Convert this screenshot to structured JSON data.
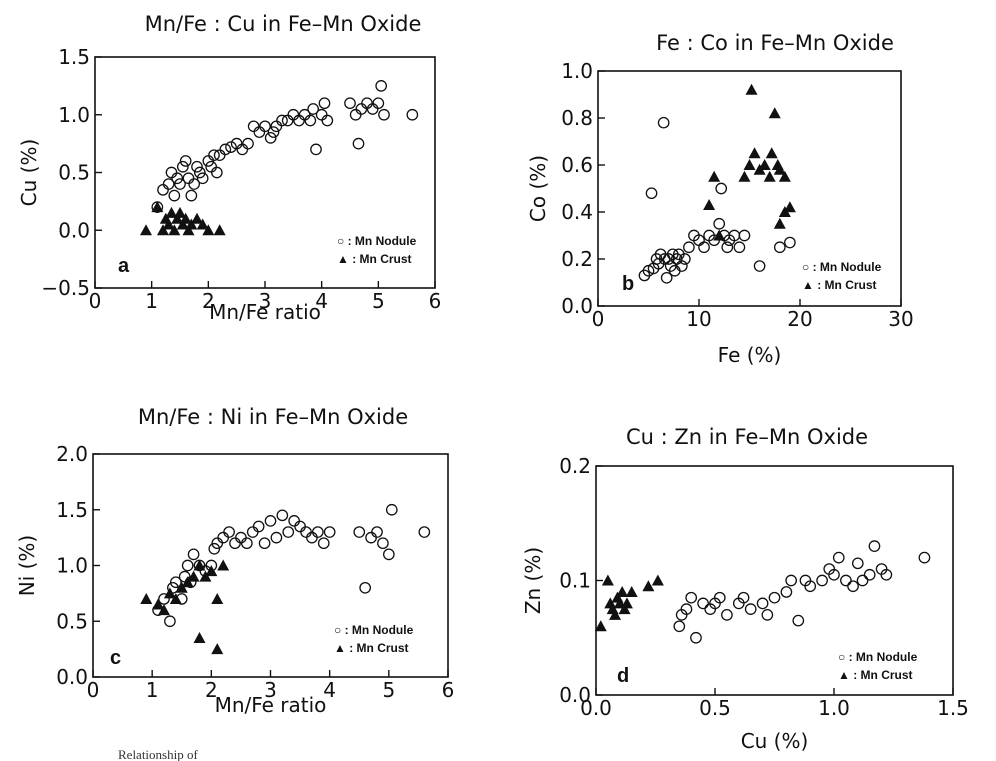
{
  "figure": {
    "caption_fragment": "Relationship of"
  },
  "chart_data": [
    {
      "id": "a",
      "type": "scatter",
      "title": "Mn/Fe : Cu in Fe–Mn Oxide",
      "xlabel": "Mn/Fe ratio",
      "ylabel": "Cu (%)",
      "panel_label": "a",
      "xlim": [
        0,
        6
      ],
      "ylim": [
        -0.5,
        1.5
      ],
      "xticks": [
        0,
        1,
        2,
        3,
        4,
        5,
        6
      ],
      "yticks": [
        -0.5,
        0.0,
        0.5,
        1.0,
        1.5
      ],
      "ytick_labels": [
        "−0.5",
        "0.0",
        "0.5",
        "1.0",
        "1.5"
      ],
      "xtick_labels": [
        "0",
        "1",
        "2",
        "3",
        "4",
        "5",
        "6"
      ],
      "legend": [
        "○ : Mn Nodule",
        "▲ : Mn Crust"
      ],
      "legend_position": "bottom-right",
      "series": [
        {
          "name": "Mn Nodule",
          "marker": "open-circle",
          "points": [
            [
              1.1,
              0.2
            ],
            [
              1.2,
              0.35
            ],
            [
              1.3,
              0.4
            ],
            [
              1.35,
              0.5
            ],
            [
              1.4,
              0.3
            ],
            [
              1.45,
              0.45
            ],
            [
              1.5,
              0.4
            ],
            [
              1.55,
              0.55
            ],
            [
              1.6,
              0.6
            ],
            [
              1.65,
              0.45
            ],
            [
              1.7,
              0.3
            ],
            [
              1.75,
              0.4
            ],
            [
              1.8,
              0.55
            ],
            [
              1.85,
              0.5
            ],
            [
              1.9,
              0.45
            ],
            [
              2.0,
              0.6
            ],
            [
              2.05,
              0.55
            ],
            [
              2.1,
              0.65
            ],
            [
              2.15,
              0.5
            ],
            [
              2.2,
              0.65
            ],
            [
              2.3,
              0.7
            ],
            [
              2.4,
              0.72
            ],
            [
              2.5,
              0.75
            ],
            [
              2.6,
              0.7
            ],
            [
              2.7,
              0.75
            ],
            [
              2.8,
              0.9
            ],
            [
              2.9,
              0.85
            ],
            [
              3.0,
              0.9
            ],
            [
              3.1,
              0.8
            ],
            [
              3.15,
              0.85
            ],
            [
              3.2,
              0.9
            ],
            [
              3.3,
              0.95
            ],
            [
              3.4,
              0.95
            ],
            [
              3.5,
              1.0
            ],
            [
              3.6,
              0.95
            ],
            [
              3.7,
              1.0
            ],
            [
              3.8,
              0.95
            ],
            [
              3.85,
              1.05
            ],
            [
              3.9,
              0.7
            ],
            [
              4.0,
              1.0
            ],
            [
              4.05,
              1.1
            ],
            [
              4.1,
              0.95
            ],
            [
              4.5,
              1.1
            ],
            [
              4.6,
              1.0
            ],
            [
              4.65,
              0.75
            ],
            [
              4.7,
              1.05
            ],
            [
              4.8,
              1.1
            ],
            [
              4.9,
              1.05
            ],
            [
              5.0,
              1.1
            ],
            [
              5.05,
              1.25
            ],
            [
              5.1,
              1.0
            ],
            [
              5.6,
              1.0
            ]
          ]
        },
        {
          "name": "Mn Crust",
          "marker": "filled-triangle",
          "points": [
            [
              0.9,
              0.0
            ],
            [
              1.1,
              0.2
            ],
            [
              1.2,
              0.0
            ],
            [
              1.25,
              0.1
            ],
            [
              1.3,
              0.05
            ],
            [
              1.35,
              0.15
            ],
            [
              1.4,
              0.0
            ],
            [
              1.45,
              0.1
            ],
            [
              1.5,
              0.15
            ],
            [
              1.55,
              0.05
            ],
            [
              1.6,
              0.1
            ],
            [
              1.65,
              0.0
            ],
            [
              1.7,
              0.05
            ],
            [
              1.8,
              0.1
            ],
            [
              1.9,
              0.05
            ],
            [
              2.0,
              0.0
            ],
            [
              2.2,
              0.0
            ]
          ]
        }
      ]
    },
    {
      "id": "b",
      "type": "scatter",
      "title": "Fe : Co in Fe–Mn Oxide",
      "xlabel": "Fe (%)",
      "ylabel": "Co (%)",
      "panel_label": "b",
      "xlim": [
        0,
        30
      ],
      "ylim": [
        0.0,
        1.0
      ],
      "xticks": [
        0,
        10,
        20,
        30
      ],
      "yticks": [
        0.0,
        0.2,
        0.4,
        0.6,
        0.8,
        1.0
      ],
      "ytick_labels": [
        "0.0",
        "0.2",
        "0.4",
        "0.6",
        "0.8",
        "1.0"
      ],
      "xtick_labels": [
        "0",
        "10",
        "20",
        "30"
      ],
      "legend": [
        "○ : Mn Nodule",
        "▲ : Mn Crust"
      ],
      "legend_position": "bottom-right",
      "series": [
        {
          "name": "Mn Nodule",
          "marker": "open-circle",
          "points": [
            [
              4.6,
              0.13
            ],
            [
              5.0,
              0.15
            ],
            [
              5.3,
              0.48
            ],
            [
              5.5,
              0.16
            ],
            [
              5.8,
              0.2
            ],
            [
              6.0,
              0.18
            ],
            [
              6.2,
              0.22
            ],
            [
              6.5,
              0.78
            ],
            [
              6.6,
              0.2
            ],
            [
              6.8,
              0.12
            ],
            [
              7.0,
              0.2
            ],
            [
              7.2,
              0.17
            ],
            [
              7.4,
              0.22
            ],
            [
              7.6,
              0.15
            ],
            [
              7.8,
              0.2
            ],
            [
              8.0,
              0.22
            ],
            [
              8.3,
              0.17
            ],
            [
              8.6,
              0.2
            ],
            [
              9.0,
              0.25
            ],
            [
              9.5,
              0.3
            ],
            [
              10.0,
              0.28
            ],
            [
              10.5,
              0.25
            ],
            [
              11.0,
              0.3
            ],
            [
              11.5,
              0.28
            ],
            [
              12.0,
              0.35
            ],
            [
              12.2,
              0.5
            ],
            [
              12.5,
              0.3
            ],
            [
              12.8,
              0.25
            ],
            [
              13.0,
              0.28
            ],
            [
              13.5,
              0.3
            ],
            [
              14.0,
              0.25
            ],
            [
              14.5,
              0.3
            ],
            [
              16.0,
              0.17
            ],
            [
              18.0,
              0.25
            ],
            [
              19.0,
              0.27
            ]
          ]
        },
        {
          "name": "Mn Crust",
          "marker": "filled-triangle",
          "points": [
            [
              11.0,
              0.43
            ],
            [
              11.5,
              0.55
            ],
            [
              12.0,
              0.3
            ],
            [
              14.5,
              0.55
            ],
            [
              15.0,
              0.6
            ],
            [
              15.2,
              0.92
            ],
            [
              15.5,
              0.65
            ],
            [
              16.0,
              0.58
            ],
            [
              16.5,
              0.6
            ],
            [
              17.0,
              0.55
            ],
            [
              17.2,
              0.65
            ],
            [
              17.5,
              0.82
            ],
            [
              17.8,
              0.6
            ],
            [
              18.0,
              0.58
            ],
            [
              18.5,
              0.55
            ],
            [
              18.0,
              0.35
            ],
            [
              18.5,
              0.4
            ],
            [
              19.0,
              0.42
            ]
          ]
        }
      ]
    },
    {
      "id": "c",
      "type": "scatter",
      "title": "Mn/Fe : Ni in Fe–Mn Oxide",
      "xlabel": "Mn/Fe ratio",
      "ylabel": "Ni (%)",
      "panel_label": "c",
      "xlim": [
        0,
        6
      ],
      "ylim": [
        0.0,
        2.0
      ],
      "xticks": [
        0,
        1,
        2,
        3,
        4,
        5,
        6
      ],
      "yticks": [
        0.0,
        0.5,
        1.0,
        1.5,
        2.0
      ],
      "ytick_labels": [
        "0.0",
        "0.5",
        "1.0",
        "1.5",
        "2.0"
      ],
      "xtick_labels": [
        "0",
        "1",
        "2",
        "3",
        "4",
        "5",
        "6"
      ],
      "legend": [
        "○ : Mn Nodule",
        "▲ : Mn Crust"
      ],
      "legend_position": "bottom-right",
      "series": [
        {
          "name": "Mn Nodule",
          "marker": "open-circle",
          "points": [
            [
              1.1,
              0.6
            ],
            [
              1.2,
              0.7
            ],
            [
              1.3,
              0.5
            ],
            [
              1.35,
              0.8
            ],
            [
              1.4,
              0.85
            ],
            [
              1.5,
              0.7
            ],
            [
              1.55,
              0.9
            ],
            [
              1.6,
              1.0
            ],
            [
              1.65,
              0.85
            ],
            [
              1.7,
              1.1
            ],
            [
              1.8,
              1.0
            ],
            [
              1.9,
              0.95
            ],
            [
              2.0,
              1.0
            ],
            [
              2.05,
              1.15
            ],
            [
              2.1,
              1.2
            ],
            [
              2.2,
              1.25
            ],
            [
              2.3,
              1.3
            ],
            [
              2.4,
              1.2
            ],
            [
              2.5,
              1.25
            ],
            [
              2.6,
              1.2
            ],
            [
              2.7,
              1.3
            ],
            [
              2.8,
              1.35
            ],
            [
              2.9,
              1.2
            ],
            [
              3.0,
              1.4
            ],
            [
              3.1,
              1.25
            ],
            [
              3.2,
              1.45
            ],
            [
              3.3,
              1.3
            ],
            [
              3.4,
              1.4
            ],
            [
              3.5,
              1.35
            ],
            [
              3.6,
              1.3
            ],
            [
              3.7,
              1.25
            ],
            [
              3.8,
              1.3
            ],
            [
              3.9,
              1.2
            ],
            [
              4.0,
              1.3
            ],
            [
              4.5,
              1.3
            ],
            [
              4.6,
              0.8
            ],
            [
              4.7,
              1.25
            ],
            [
              4.8,
              1.3
            ],
            [
              4.9,
              1.2
            ],
            [
              5.0,
              1.1
            ],
            [
              5.05,
              1.5
            ],
            [
              5.6,
              1.3
            ]
          ]
        },
        {
          "name": "Mn Crust",
          "marker": "filled-triangle",
          "points": [
            [
              0.9,
              0.7
            ],
            [
              1.1,
              0.65
            ],
            [
              1.2,
              0.6
            ],
            [
              1.3,
              0.75
            ],
            [
              1.4,
              0.7
            ],
            [
              1.5,
              0.8
            ],
            [
              1.6,
              0.85
            ],
            [
              1.7,
              0.9
            ],
            [
              1.8,
              1.0
            ],
            [
              1.8,
              0.35
            ],
            [
              1.9,
              0.9
            ],
            [
              2.0,
              0.95
            ],
            [
              2.1,
              0.25
            ],
            [
              2.1,
              0.7
            ],
            [
              2.2,
              1.0
            ]
          ]
        }
      ]
    },
    {
      "id": "d",
      "type": "scatter",
      "title": "Cu : Zn in Fe–Mn Oxide",
      "xlabel": "Cu (%)",
      "ylabel": "Zn (%)",
      "panel_label": "d",
      "xlim": [
        0.0,
        1.5
      ],
      "ylim": [
        0.0,
        0.2
      ],
      "xticks": [
        0.0,
        0.5,
        1.0,
        1.5
      ],
      "yticks": [
        0.0,
        0.1,
        0.2
      ],
      "ytick_labels": [
        "0.0",
        "0.1",
        "0.2"
      ],
      "xtick_labels": [
        "0.0",
        "0.5",
        "1.0",
        "1.5"
      ],
      "legend": [
        "○ : Mn Nodule",
        "▲ : Mn Crust"
      ],
      "legend_position": "bottom-right",
      "series": [
        {
          "name": "Mn Nodule",
          "marker": "open-circle",
          "points": [
            [
              0.35,
              0.06
            ],
            [
              0.36,
              0.07
            ],
            [
              0.38,
              0.075
            ],
            [
              0.4,
              0.085
            ],
            [
              0.42,
              0.05
            ],
            [
              0.45,
              0.08
            ],
            [
              0.48,
              0.075
            ],
            [
              0.5,
              0.08
            ],
            [
              0.52,
              0.085
            ],
            [
              0.55,
              0.07
            ],
            [
              0.6,
              0.08
            ],
            [
              0.62,
              0.085
            ],
            [
              0.65,
              0.075
            ],
            [
              0.7,
              0.08
            ],
            [
              0.72,
              0.07
            ],
            [
              0.75,
              0.085
            ],
            [
              0.8,
              0.09
            ],
            [
              0.82,
              0.1
            ],
            [
              0.85,
              0.065
            ],
            [
              0.88,
              0.1
            ],
            [
              0.9,
              0.095
            ],
            [
              0.95,
              0.1
            ],
            [
              0.98,
              0.11
            ],
            [
              1.0,
              0.105
            ],
            [
              1.02,
              0.12
            ],
            [
              1.05,
              0.1
            ],
            [
              1.08,
              0.095
            ],
            [
              1.1,
              0.115
            ],
            [
              1.12,
              0.1
            ],
            [
              1.15,
              0.105
            ],
            [
              1.17,
              0.13
            ],
            [
              1.2,
              0.11
            ],
            [
              1.22,
              0.105
            ],
            [
              1.38,
              0.12
            ]
          ]
        },
        {
          "name": "Mn Crust",
          "marker": "filled-triangle",
          "points": [
            [
              0.02,
              0.06
            ],
            [
              0.05,
              0.1
            ],
            [
              0.06,
              0.08
            ],
            [
              0.07,
              0.075
            ],
            [
              0.08,
              0.07
            ],
            [
              0.09,
              0.085
            ],
            [
              0.1,
              0.08
            ],
            [
              0.11,
              0.09
            ],
            [
              0.12,
              0.075
            ],
            [
              0.13,
              0.08
            ],
            [
              0.15,
              0.09
            ],
            [
              0.22,
              0.095
            ],
            [
              0.26,
              0.1
            ]
          ]
        }
      ]
    }
  ]
}
